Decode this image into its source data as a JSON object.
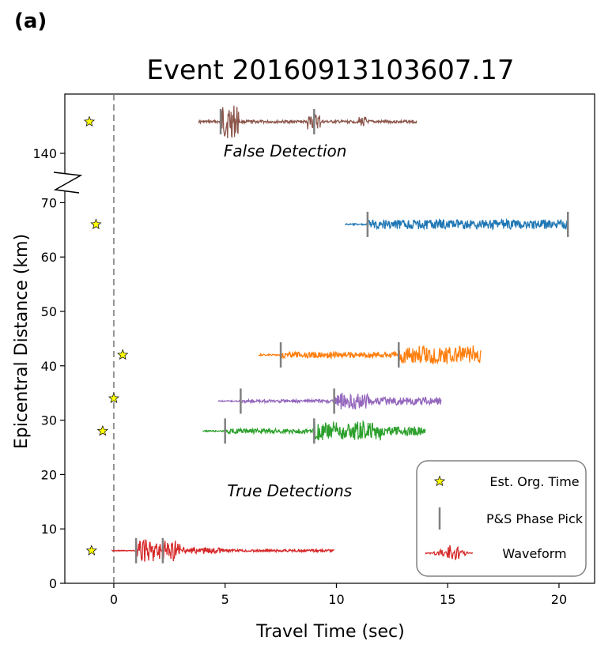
{
  "panel_label": "(a)",
  "chart_data": {
    "type": "line",
    "title": "Event 20160913103607.17",
    "xlabel": "Travel Time (sec)",
    "ylabel": "Epicentral Distance (km)",
    "xlim": [
      -2.2,
      21.6
    ],
    "ylim_lower": [
      0,
      75
    ],
    "ylim_upper": [
      137,
      148
    ],
    "xticks": [
      0,
      5,
      10,
      15,
      20
    ],
    "xtick_labels": [
      "0",
      "5",
      "10",
      "15",
      "20"
    ],
    "yticks_lower": [
      0,
      10,
      20,
      30,
      40,
      50,
      60,
      70
    ],
    "ytick_labels_lower": [
      "0",
      "10",
      "20",
      "30",
      "40",
      "50",
      "60",
      "70"
    ],
    "yticks_upper": [
      140
    ],
    "ytick_labels_upper": [
      "140"
    ],
    "zero_line_x": 0,
    "series": [
      {
        "color": "#8c564b",
        "distance": 145,
        "t_start": 3.8,
        "t_end": 13.6,
        "picks": [
          4.8,
          9.0
        ],
        "detection": "false"
      },
      {
        "color": "#1f77b4",
        "distance": 66,
        "t_start": 10.4,
        "t_end": 20.4,
        "picks": [
          11.4,
          20.4
        ],
        "detection": "true"
      },
      {
        "color": "#ff7f0e",
        "distance": 42,
        "t_start": 6.5,
        "t_end": 16.5,
        "picks": [
          7.5,
          12.8
        ],
        "detection": "true"
      },
      {
        "color": "#9467bd",
        "distance": 33.5,
        "t_start": 4.7,
        "t_end": 14.7,
        "picks": [
          5.7,
          9.9
        ],
        "detection": "true"
      },
      {
        "color": "#2ca02c",
        "distance": 28,
        "t_start": 4.0,
        "t_end": 14.0,
        "picks": [
          5.0,
          9.0
        ],
        "detection": "true"
      },
      {
        "color": "#d62728",
        "distance": 6,
        "t_start": -0.1,
        "t_end": 9.9,
        "picks": [
          1.0,
          2.2
        ],
        "detection": "true"
      }
    ],
    "origin_times": [
      {
        "t": -1.1,
        "d": 145
      },
      {
        "t": -0.8,
        "d": 66
      },
      {
        "t": 0.4,
        "d": 42
      },
      {
        "t": 0.0,
        "d": 34
      },
      {
        "t": -0.5,
        "d": 28
      },
      {
        "t": -1.0,
        "d": 6
      }
    ],
    "annotations": [
      {
        "text": "False Detection",
        "x": 7.7,
        "y": 139.5
      },
      {
        "text": "True Detections",
        "x": 7.9,
        "y": 16
      }
    ],
    "legend": {
      "position": "bottom-right",
      "entries": [
        {
          "label": "Est. Org. Time",
          "marker": "star",
          "color": "#ffff00"
        },
        {
          "label": "P&S Phase Pick",
          "marker": "vline",
          "color": "#808080"
        },
        {
          "label": "Waveform",
          "marker": "waveform",
          "color": "#d62728"
        }
      ]
    }
  }
}
